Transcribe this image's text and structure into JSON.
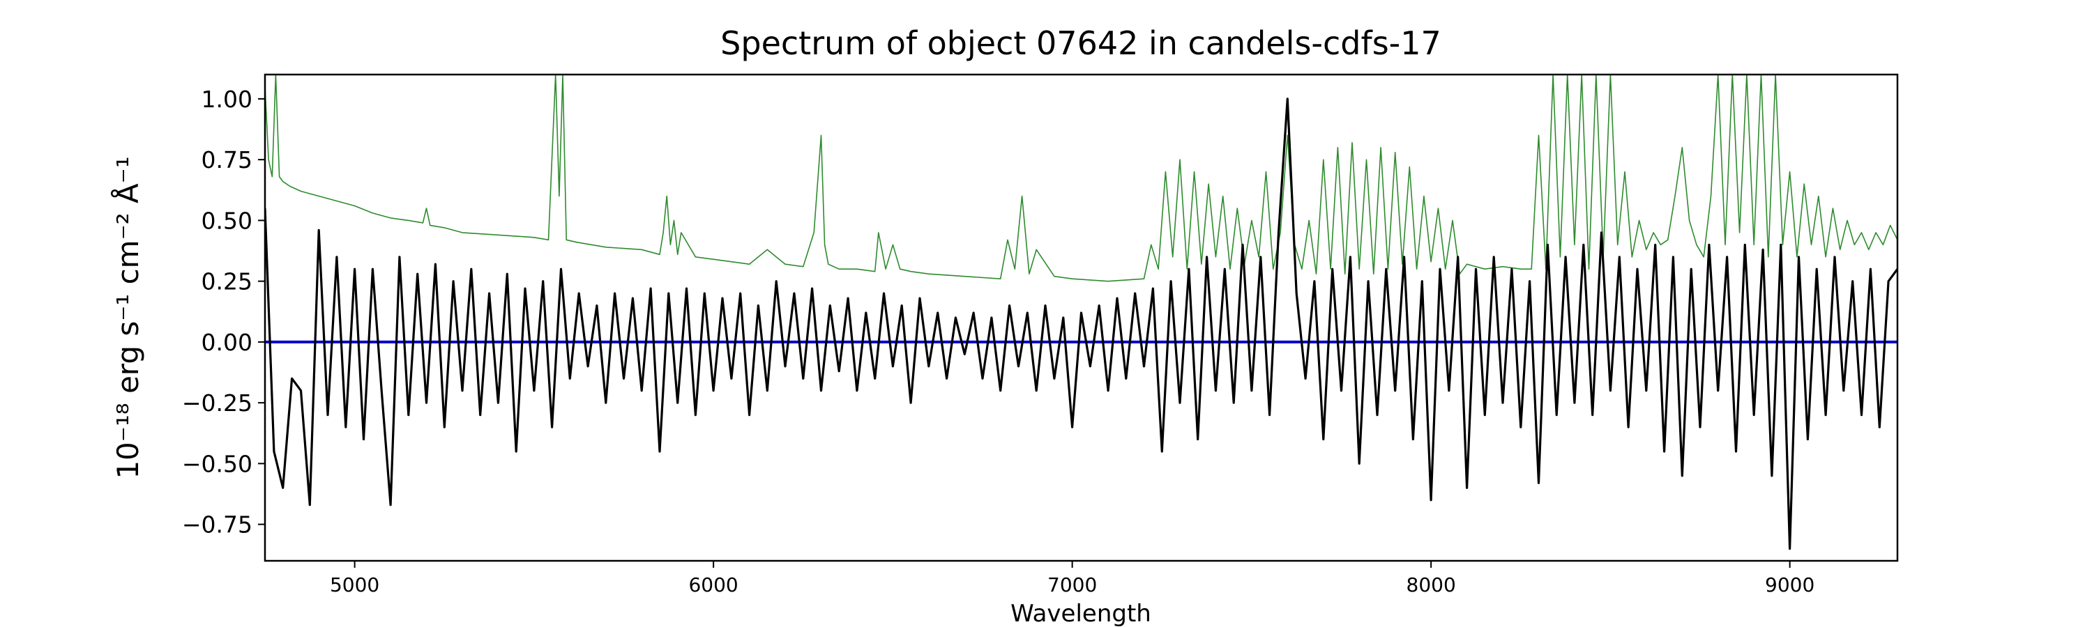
{
  "chart_data": {
    "type": "line",
    "title": "Spectrum of object 07642 in candels-cdfs-17",
    "xlabel": "Wavelength",
    "ylabel": "10⁻¹⁸ erg s⁻¹ cm⁻² Å⁻¹",
    "xlim": [
      4750,
      9300
    ],
    "ylim": [
      -0.9,
      1.1
    ],
    "grid": false,
    "xticks": [
      5000,
      6000,
      7000,
      8000,
      9000
    ],
    "xtick_labels": [
      "5000",
      "6000",
      "7000",
      "8000",
      "9000"
    ],
    "yticks": [
      -0.75,
      -0.5,
      -0.25,
      0.0,
      0.25,
      0.5,
      0.75,
      1.0
    ],
    "ytick_labels": [
      "−0.75",
      "−0.50",
      "−0.25",
      "0.00",
      "0.25",
      "0.50",
      "0.75",
      "1.00"
    ],
    "colors": {
      "flux": "#000000",
      "noise": "#2e8b2e",
      "zero": "#0000cc"
    },
    "series": [
      {
        "key": "flux",
        "style": "thick",
        "x": [
          4750,
          4775,
          4800,
          4825,
          4850,
          4875,
          4900,
          4925,
          4950,
          4975,
          5000,
          5025,
          5050,
          5075,
          5100,
          5125,
          5150,
          5175,
          5200,
          5225,
          5250,
          5275,
          5300,
          5325,
          5350,
          5375,
          5400,
          5425,
          5450,
          5475,
          5500,
          5525,
          5550,
          5575,
          5600,
          5625,
          5650,
          5675,
          5700,
          5725,
          5750,
          5775,
          5800,
          5825,
          5850,
          5875,
          5900,
          5925,
          5950,
          5975,
          6000,
          6025,
          6050,
          6075,
          6100,
          6125,
          6150,
          6175,
          6200,
          6225,
          6250,
          6275,
          6300,
          6325,
          6350,
          6375,
          6400,
          6425,
          6450,
          6475,
          6500,
          6525,
          6550,
          6575,
          6600,
          6625,
          6650,
          6675,
          6700,
          6725,
          6750,
          6775,
          6800,
          6825,
          6850,
          6875,
          6900,
          6925,
          6950,
          6975,
          7000,
          7025,
          7050,
          7075,
          7100,
          7125,
          7150,
          7175,
          7200,
          7225,
          7250,
          7275,
          7300,
          7325,
          7350,
          7375,
          7400,
          7425,
          7450,
          7475,
          7500,
          7525,
          7550,
          7575,
          7600,
          7625,
          7650,
          7675,
          7700,
          7725,
          7750,
          7775,
          7800,
          7825,
          7850,
          7875,
          7900,
          7925,
          7950,
          7975,
          8000,
          8025,
          8050,
          8075,
          8100,
          8125,
          8150,
          8175,
          8200,
          8225,
          8250,
          8275,
          8300,
          8325,
          8350,
          8375,
          8400,
          8425,
          8450,
          8475,
          8500,
          8525,
          8550,
          8575,
          8600,
          8625,
          8650,
          8675,
          8700,
          8725,
          8750,
          8775,
          8800,
          8825,
          8850,
          8875,
          8900,
          8925,
          8950,
          8975,
          9000,
          9025,
          9050,
          9075,
          9100,
          9125,
          9150,
          9175,
          9200,
          9225,
          9250,
          9275,
          9300
        ],
        "y": [
          0.55,
          -0.45,
          -0.6,
          -0.15,
          -0.2,
          -0.67,
          0.46,
          -0.3,
          0.35,
          -0.35,
          0.3,
          -0.4,
          0.3,
          -0.2,
          -0.67,
          0.35,
          -0.3,
          0.28,
          -0.25,
          0.32,
          -0.35,
          0.25,
          -0.2,
          0.3,
          -0.3,
          0.2,
          -0.25,
          0.28,
          -0.45,
          0.22,
          -0.2,
          0.25,
          -0.35,
          0.3,
          -0.15,
          0.2,
          -0.1,
          0.15,
          -0.25,
          0.2,
          -0.15,
          0.18,
          -0.2,
          0.22,
          -0.45,
          0.2,
          -0.25,
          0.22,
          -0.3,
          0.2,
          -0.2,
          0.18,
          -0.15,
          0.2,
          -0.3,
          0.15,
          -0.2,
          0.25,
          -0.1,
          0.2,
          -0.15,
          0.22,
          -0.2,
          0.15,
          -0.12,
          0.18,
          -0.2,
          0.12,
          -0.15,
          0.2,
          -0.1,
          0.15,
          -0.25,
          0.18,
          -0.1,
          0.12,
          -0.15,
          0.1,
          -0.05,
          0.12,
          -0.15,
          0.1,
          -0.2,
          0.15,
          -0.1,
          0.12,
          -0.2,
          0.15,
          -0.15,
          0.1,
          -0.35,
          0.12,
          -0.1,
          0.15,
          -0.2,
          0.18,
          -0.15,
          0.2,
          -0.1,
          0.22,
          -0.45,
          0.25,
          -0.25,
          0.3,
          -0.4,
          0.35,
          -0.2,
          0.3,
          -0.25,
          0.4,
          -0.2,
          0.35,
          -0.3,
          0.45,
          1.0,
          0.2,
          -0.15,
          0.25,
          -0.4,
          0.3,
          -0.2,
          0.35,
          -0.5,
          0.25,
          -0.3,
          0.3,
          -0.2,
          0.35,
          -0.4,
          0.25,
          -0.65,
          0.3,
          -0.2,
          0.35,
          -0.6,
          0.3,
          -0.3,
          0.35,
          -0.25,
          0.3,
          -0.35,
          0.25,
          -0.58,
          0.4,
          -0.3,
          0.35,
          -0.25,
          0.4,
          -0.3,
          0.45,
          -0.2,
          0.35,
          -0.35,
          0.3,
          -0.2,
          0.4,
          -0.45,
          0.35,
          -0.55,
          0.3,
          -0.35,
          0.4,
          -0.2,
          0.35,
          -0.45,
          0.4,
          -0.3,
          0.38,
          -0.55,
          0.4,
          -0.85,
          0.35,
          -0.4,
          0.3,
          -0.3,
          0.35,
          -0.2,
          0.25,
          -0.3,
          0.3,
          -0.35,
          0.25,
          0.3
        ]
      },
      {
        "key": "noise",
        "style": "thin",
        "x": [
          4750,
          4760,
          4770,
          4780,
          4790,
          4800,
          4810,
          4820,
          4850,
          4900,
          4950,
          5000,
          5050,
          5100,
          5150,
          5190,
          5200,
          5210,
          5250,
          5300,
          5400,
          5500,
          5540,
          5560,
          5570,
          5580,
          5590,
          5620,
          5700,
          5800,
          5850,
          5860,
          5870,
          5880,
          5890,
          5900,
          5910,
          5950,
          6000,
          6100,
          6150,
          6200,
          6250,
          6280,
          6300,
          6310,
          6320,
          6350,
          6400,
          6450,
          6460,
          6480,
          6500,
          6520,
          6550,
          6600,
          6700,
          6800,
          6820,
          6840,
          6860,
          6880,
          6900,
          6950,
          7000,
          7100,
          7200,
          7220,
          7240,
          7260,
          7280,
          7300,
          7320,
          7340,
          7360,
          7380,
          7400,
          7420,
          7440,
          7460,
          7480,
          7500,
          7520,
          7540,
          7560,
          7580,
          7600,
          7620,
          7640,
          7660,
          7680,
          7700,
          7720,
          7740,
          7760,
          7780,
          7800,
          7820,
          7840,
          7860,
          7880,
          7900,
          7920,
          7940,
          7960,
          7980,
          8000,
          8020,
          8040,
          8060,
          8080,
          8100,
          8150,
          8200,
          8250,
          8280,
          8300,
          8320,
          8340,
          8360,
          8380,
          8400,
          8420,
          8440,
          8460,
          8480,
          8500,
          8520,
          8540,
          8560,
          8580,
          8600,
          8620,
          8640,
          8660,
          8680,
          8700,
          8720,
          8740,
          8760,
          8780,
          8800,
          8820,
          8840,
          8860,
          8880,
          8900,
          8920,
          8940,
          8960,
          8980,
          9000,
          9020,
          9040,
          9060,
          9080,
          9100,
          9120,
          9140,
          9160,
          9180,
          9200,
          9220,
          9240,
          9260,
          9280,
          9300
        ],
        "y": [
          1.05,
          0.75,
          0.68,
          1.1,
          0.68,
          0.66,
          0.65,
          0.64,
          0.62,
          0.6,
          0.58,
          0.56,
          0.53,
          0.51,
          0.5,
          0.49,
          0.55,
          0.48,
          0.47,
          0.45,
          0.44,
          0.43,
          0.42,
          1.1,
          0.6,
          1.1,
          0.42,
          0.41,
          0.39,
          0.38,
          0.36,
          0.45,
          0.6,
          0.4,
          0.5,
          0.36,
          0.45,
          0.35,
          0.34,
          0.32,
          0.38,
          0.32,
          0.31,
          0.45,
          0.85,
          0.4,
          0.32,
          0.3,
          0.3,
          0.29,
          0.45,
          0.3,
          0.4,
          0.3,
          0.29,
          0.28,
          0.27,
          0.26,
          0.42,
          0.3,
          0.6,
          0.28,
          0.38,
          0.27,
          0.26,
          0.25,
          0.26,
          0.4,
          0.3,
          0.7,
          0.35,
          0.75,
          0.3,
          0.7,
          0.32,
          0.65,
          0.35,
          0.6,
          0.3,
          0.55,
          0.32,
          0.5,
          0.35,
          0.7,
          0.3,
          0.45,
          0.85,
          0.4,
          0.3,
          0.5,
          0.28,
          0.75,
          0.3,
          0.8,
          0.28,
          0.82,
          0.3,
          0.75,
          0.28,
          0.8,
          0.3,
          0.78,
          0.32,
          0.72,
          0.3,
          0.6,
          0.33,
          0.55,
          0.3,
          0.5,
          0.28,
          0.32,
          0.3,
          0.31,
          0.3,
          0.3,
          0.85,
          0.3,
          1.1,
          0.35,
          1.1,
          0.4,
          1.1,
          0.3,
          1.1,
          0.35,
          1.1,
          0.4,
          0.7,
          0.35,
          0.5,
          0.38,
          0.45,
          0.4,
          0.42,
          0.6,
          0.8,
          0.5,
          0.4,
          0.35,
          0.6,
          1.1,
          0.4,
          1.1,
          0.45,
          1.1,
          0.4,
          1.1,
          0.35,
          1.1,
          0.4,
          0.7,
          0.35,
          0.65,
          0.4,
          0.6,
          0.35,
          0.55,
          0.38,
          0.5,
          0.4,
          0.45,
          0.38,
          0.45,
          0.4,
          0.48,
          0.42
        ]
      },
      {
        "key": "zero",
        "style": "medium",
        "x": [
          4750,
          9300
        ],
        "y": [
          0,
          0
        ]
      }
    ]
  }
}
